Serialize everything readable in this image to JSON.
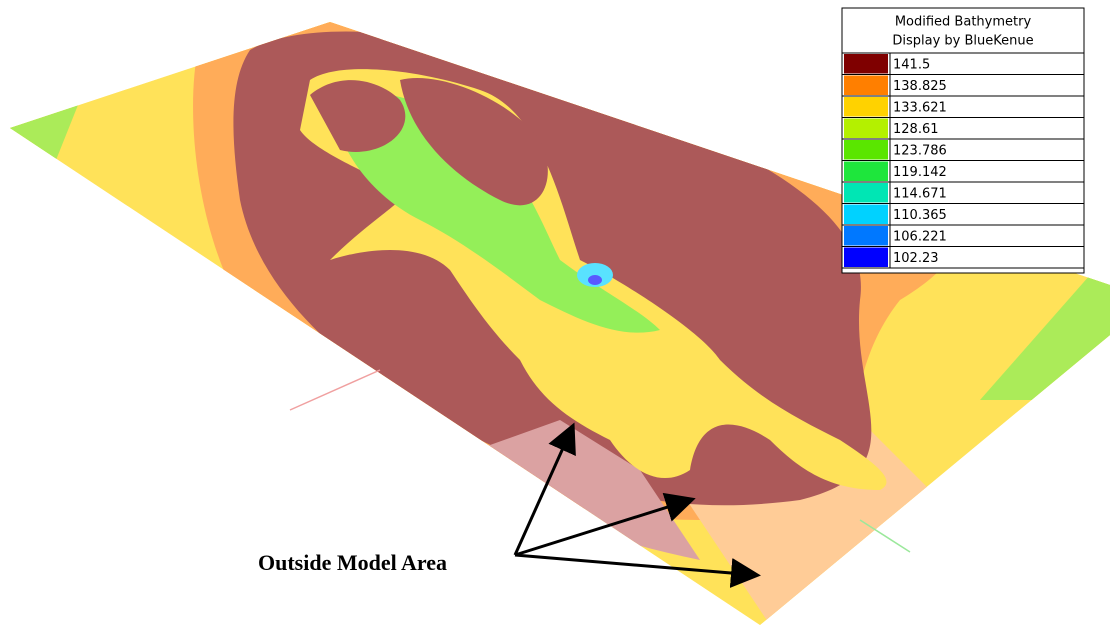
{
  "legend": {
    "title": [
      "Modified Bathymetry",
      "Display by BlueKenue"
    ],
    "items": [
      {
        "label": "141.5",
        "color": "#7f0000"
      },
      {
        "label": "138.825",
        "color": "#ff7f00"
      },
      {
        "label": "133.621",
        "color": "#ffd200"
      },
      {
        "label": "128.61",
        "color": "#b4f000"
      },
      {
        "label": "123.786",
        "color": "#5ae600"
      },
      {
        "label": "119.142",
        "color": "#1ee63c"
      },
      {
        "label": "114.671",
        "color": "#00e6b4"
      },
      {
        "label": "110.365",
        "color": "#00d2ff"
      },
      {
        "label": "106.221",
        "color": "#0078ff"
      },
      {
        "label": "102.23",
        "color": "#0000ff"
      }
    ]
  },
  "annotation": "Outside Model Area"
}
